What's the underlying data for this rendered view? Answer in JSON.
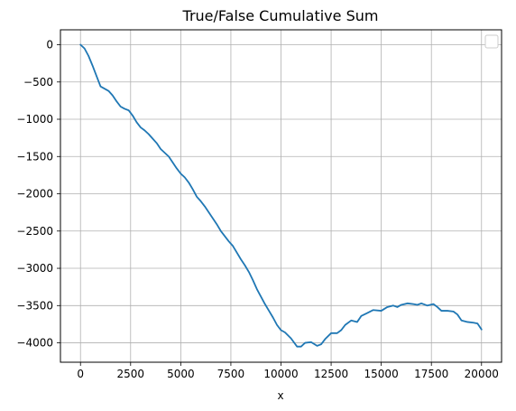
{
  "chart_data": {
    "type": "line",
    "title": "True/False Cumulative Sum",
    "xlabel": "x",
    "ylabel": "",
    "xlim": [
      -1000,
      21000
    ],
    "ylim": [
      -4260,
      200
    ],
    "xticks": [
      0,
      2500,
      5000,
      7500,
      10000,
      12500,
      15000,
      17500,
      20000
    ],
    "yticks": [
      0,
      -500,
      -1000,
      -1500,
      -2000,
      -2500,
      -3000,
      -3500,
      -4000
    ],
    "grid": true,
    "legend": "upper-right-empty",
    "line_color": "#1f77b4",
    "series": [
      {
        "x": [
          0,
          200,
          400,
          600,
          800,
          1000,
          1200,
          1400,
          1600,
          1800,
          2000,
          2200,
          2400,
          2600,
          2800,
          3000,
          3200,
          3400,
          3600,
          3800,
          4000,
          4200,
          4400,
          4600,
          4800,
          5000,
          5200,
          5400,
          5600,
          5800,
          6000,
          6200,
          6400,
          6600,
          6800,
          7000,
          7200,
          7400,
          7600,
          7800,
          8000,
          8200,
          8400,
          8600,
          8800,
          9000,
          9200,
          9400,
          9600,
          9800,
          10000,
          10200,
          10500,
          10800,
          11000,
          11200,
          11500,
          11800,
          12000,
          12200,
          12500,
          12800,
          13000,
          13200,
          13500,
          13800,
          14000,
          14300,
          14600,
          15000,
          15300,
          15600,
          15800,
          16000,
          16300,
          16600,
          16800,
          17000,
          17300,
          17600,
          17800,
          18000,
          18300,
          18600,
          18800,
          19000,
          19300,
          19600,
          19800,
          20000
        ],
        "y": [
          0,
          -50,
          -150,
          -280,
          -420,
          -560,
          -590,
          -620,
          -680,
          -760,
          -830,
          -860,
          -880,
          -950,
          -1040,
          -1110,
          -1150,
          -1200,
          -1260,
          -1320,
          -1400,
          -1450,
          -1500,
          -1580,
          -1660,
          -1730,
          -1780,
          -1850,
          -1940,
          -2040,
          -2100,
          -2170,
          -2250,
          -2330,
          -2410,
          -2500,
          -2570,
          -2640,
          -2700,
          -2790,
          -2880,
          -2960,
          -3050,
          -3160,
          -3280,
          -3380,
          -3480,
          -3570,
          -3660,
          -3760,
          -3830,
          -3860,
          -3940,
          -4050,
          -4050,
          -4000,
          -3990,
          -4040,
          -4020,
          -3950,
          -3870,
          -3870,
          -3830,
          -3760,
          -3700,
          -3720,
          -3640,
          -3600,
          -3560,
          -3570,
          -3520,
          -3500,
          -3520,
          -3490,
          -3470,
          -3480,
          -3490,
          -3470,
          -3500,
          -3480,
          -3520,
          -3570,
          -3570,
          -3580,
          -3620,
          -3700,
          -3720,
          -3730,
          -3740,
          -3820
        ]
      }
    ]
  }
}
